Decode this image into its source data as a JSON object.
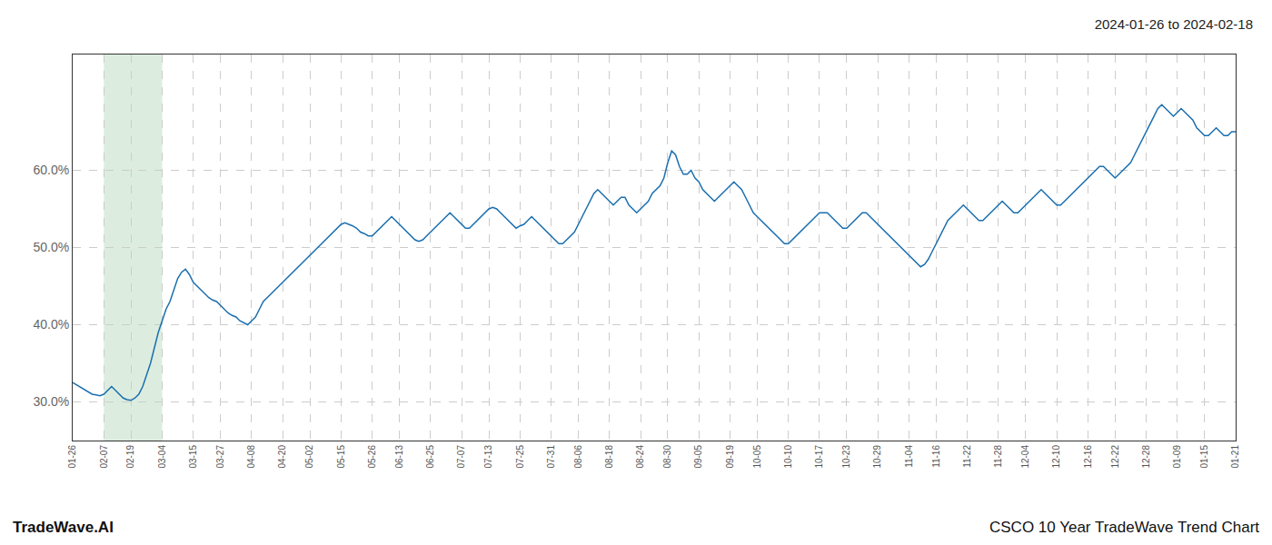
{
  "chart_data": {
    "type": "line",
    "title": "2024-01-26 to 2024-02-18",
    "annotations": [
      "TradeWave.AI",
      "CSCO 10 Year TradeWave Trend Chart"
    ],
    "color": "#1a6faf",
    "grid": true,
    "highlight": {
      "from": "02-07",
      "to": "03-04",
      "color": "#d6ead9"
    },
    "ylim": [
      25.0,
      75.0
    ],
    "yticks": [
      {
        "value": 30.0,
        "label": "30.0%"
      },
      {
        "value": 40.0,
        "label": "40.0%"
      },
      {
        "value": 50.0,
        "label": "50.0%"
      },
      {
        "value": 60.0,
        "label": "60.0%"
      }
    ],
    "categories": [
      "01-26",
      null,
      null,
      null,
      null,
      null,
      null,
      null,
      "02-07",
      null,
      null,
      null,
      null,
      null,
      null,
      "02-19",
      null,
      null,
      null,
      null,
      null,
      null,
      null,
      "03-04",
      null,
      null,
      null,
      null,
      null,
      null,
      null,
      "03-15",
      null,
      null,
      null,
      null,
      null,
      null,
      "03-27",
      null,
      null,
      null,
      null,
      null,
      null,
      null,
      "04-08",
      null,
      null,
      null,
      null,
      null,
      null,
      null,
      "04-20",
      null,
      null,
      null,
      null,
      null,
      null,
      "05-02",
      null,
      null,
      null,
      null,
      null,
      null,
      null,
      "05-15",
      null,
      null,
      null,
      null,
      null,
      null,
      null,
      "05-26",
      null,
      null,
      null,
      null,
      null,
      null,
      "06-13",
      null,
      null,
      null,
      null,
      null,
      null,
      null,
      "06-25",
      null,
      null,
      null,
      null,
      null,
      null,
      null,
      "07-07",
      null,
      null,
      null,
      null,
      null,
      null,
      "07-13",
      null,
      null,
      null,
      null,
      null,
      null,
      null,
      "07-25",
      null,
      null,
      null,
      null,
      null,
      null,
      null,
      "07-31",
      null,
      null,
      null,
      null,
      null,
      null,
      "08-06",
      null,
      null,
      null,
      null,
      null,
      null,
      null,
      "08-18",
      null,
      null,
      null,
      null,
      null,
      null,
      null,
      "08-24",
      null,
      null,
      null,
      null,
      null,
      null,
      "08-30",
      null,
      null,
      null,
      null,
      null,
      null,
      null,
      "09-05",
      null,
      null,
      null,
      null,
      null,
      null,
      null,
      "09-19",
      null,
      null,
      null,
      null,
      null,
      null,
      "10-05",
      null,
      null,
      null,
      null,
      null,
      null,
      null,
      "10-10",
      null,
      null,
      null,
      null,
      null,
      null,
      null,
      "10-17",
      null,
      null,
      null,
      null,
      null,
      null,
      "10-23",
      null,
      null,
      null,
      null,
      null,
      null,
      null,
      "10-29",
      null,
      null,
      null,
      null,
      null,
      null,
      null,
      "11-04",
      null,
      null,
      null,
      null,
      null,
      null,
      "11-16",
      null,
      null,
      null,
      null,
      null,
      null,
      null,
      "11-22",
      null,
      null,
      null,
      null,
      null,
      null,
      null,
      "11-28",
      null,
      null,
      null,
      null,
      null,
      null,
      "12-04",
      null,
      null,
      null,
      null,
      null,
      null,
      null,
      "12-10",
      null,
      null,
      null,
      null,
      null,
      null,
      null,
      "12-16",
      null,
      null,
      null,
      null,
      null,
      null,
      "12-22",
      null,
      null,
      null,
      null,
      null,
      null,
      null,
      "12-28",
      null,
      null,
      null,
      null,
      null,
      null,
      null,
      "01-09",
      null,
      null,
      null,
      null,
      null,
      null,
      "01-15",
      null,
      null,
      null,
      null,
      null,
      null,
      null,
      "01-21"
    ],
    "values": [
      32.5,
      32.2,
      31.9,
      31.5,
      31.2,
      31.0,
      30.9,
      30.8,
      31.0,
      31.5,
      32.0,
      31.5,
      31.0,
      30.5,
      30.3,
      30.2,
      30.5,
      31.0,
      32.0,
      33.5,
      35.0,
      37.0,
      39.0,
      40.5,
      42.0,
      43.0,
      44.5,
      46.0,
      46.8,
      47.2,
      46.5,
      45.5,
      45.0,
      44.5,
      44.0,
      43.5,
      43.2,
      43.0,
      42.5,
      42.0,
      41.5,
      41.2,
      41.0,
      40.5,
      40.2,
      40.0,
      40.5,
      41.0,
      42.0,
      43.0,
      43.5,
      44.0,
      44.5,
      45.0,
      45.5,
      46.0,
      46.5,
      47.0,
      47.5,
      48.0,
      48.5,
      49.0,
      49.5,
      50.0,
      50.5,
      51.0,
      51.5,
      52.0,
      52.5,
      53.0,
      53.2,
      53.0,
      52.8,
      52.5,
      52.0,
      51.8,
      51.5,
      51.5,
      52.0,
      52.5,
      53.0,
      53.5,
      54.0,
      53.5,
      53.0,
      52.5,
      52.0,
      51.5,
      51.0,
      50.8,
      51.0,
      51.5,
      52.0,
      52.5,
      53.0,
      53.5,
      54.0,
      54.5,
      54.0,
      53.5,
      53.0,
      52.5,
      52.5,
      53.0,
      53.5,
      54.0,
      54.5,
      55.0,
      55.2,
      55.0,
      54.5,
      54.0,
      53.5,
      53.0,
      52.5,
      52.8,
      53.0,
      53.5,
      54.0,
      53.5,
      53.0,
      52.5,
      52.0,
      51.5,
      51.0,
      50.5,
      50.5,
      51.0,
      51.5,
      52.0,
      53.0,
      54.0,
      55.0,
      56.0,
      57.0,
      57.5,
      57.0,
      56.5,
      56.0,
      55.5,
      56.0,
      56.5,
      56.5,
      55.5,
      55.0,
      54.5,
      55.0,
      55.5,
      56.0,
      57.0,
      57.5,
      58.0,
      59.0,
      61.0,
      62.5,
      62.0,
      60.5,
      59.5,
      59.5,
      60.0,
      59.0,
      58.5,
      57.5,
      57.0,
      56.5,
      56.0,
      56.5,
      57.0,
      57.5,
      58.0,
      58.5,
      58.0,
      57.5,
      56.5,
      55.5,
      54.5,
      54.0,
      53.5,
      53.0,
      52.5,
      52.0,
      51.5,
      51.0,
      50.5,
      50.5,
      51.0,
      51.5,
      52.0,
      52.5,
      53.0,
      53.5,
      54.0,
      54.5,
      54.5,
      54.5,
      54.0,
      53.5,
      53.0,
      52.5,
      52.5,
      53.0,
      53.5,
      54.0,
      54.5,
      54.5,
      54.0,
      53.5,
      53.0,
      52.5,
      52.0,
      51.5,
      51.0,
      50.5,
      50.0,
      49.5,
      49.0,
      48.5,
      48.0,
      47.5,
      47.8,
      48.5,
      49.5,
      50.5,
      51.5,
      52.5,
      53.5,
      54.0,
      54.5,
      55.0,
      55.5,
      55.0,
      54.5,
      54.0,
      53.5,
      53.5,
      54.0,
      54.5,
      55.0,
      55.5,
      56.0,
      55.5,
      55.0,
      54.5,
      54.5,
      55.0,
      55.5,
      56.0,
      56.5,
      57.0,
      57.5,
      57.0,
      56.5,
      56.0,
      55.5,
      55.5,
      56.0,
      56.5,
      57.0,
      57.5,
      58.0,
      58.5,
      59.0,
      59.5,
      60.0,
      60.5,
      60.5,
      60.0,
      59.5,
      59.0,
      59.5,
      60.0,
      60.5,
      61.0,
      62.0,
      63.0,
      64.0,
      65.0,
      66.0,
      67.0,
      68.0,
      68.5,
      68.0,
      67.5,
      67.0,
      67.5,
      68.0,
      67.5,
      67.0,
      66.5,
      65.5,
      65.0,
      64.5,
      64.5,
      65.0,
      65.5,
      65.0,
      64.5,
      64.5,
      65.0,
      65.0
    ]
  }
}
